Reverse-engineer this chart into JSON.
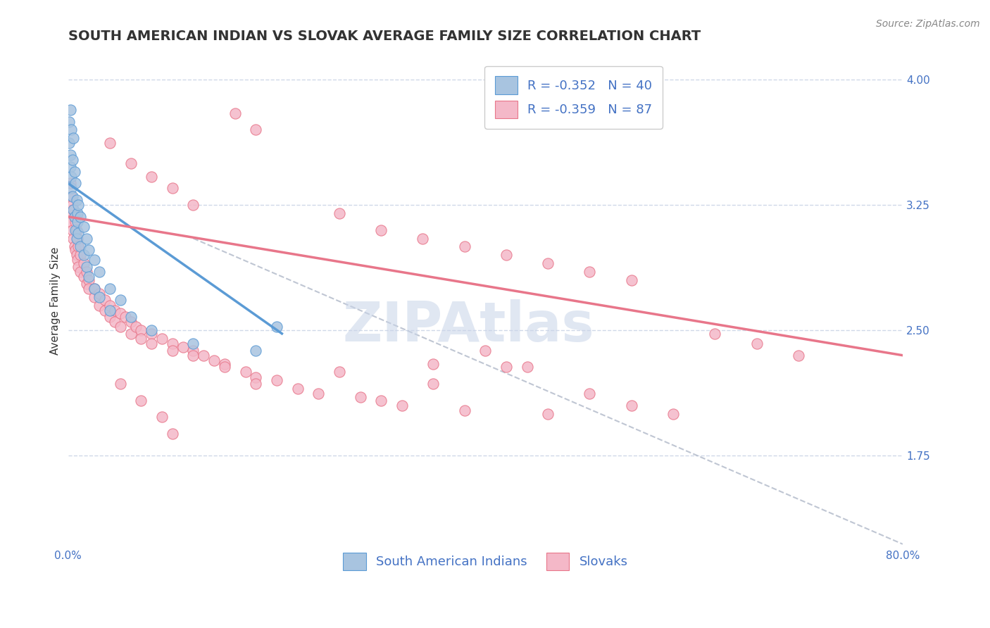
{
  "title": "SOUTH AMERICAN INDIAN VS SLOVAK AVERAGE FAMILY SIZE CORRELATION CHART",
  "source_text": "Source: ZipAtlas.com",
  "ylabel": "Average Family Size",
  "xlim": [
    0.0,
    0.8
  ],
  "ylim": [
    1.2,
    4.15
  ],
  "ytick_values": [
    1.75,
    2.5,
    3.25,
    4.0
  ],
  "blue_scatter": [
    [
      0.001,
      3.75
    ],
    [
      0.001,
      3.62
    ],
    [
      0.002,
      3.82
    ],
    [
      0.002,
      3.55
    ],
    [
      0.002,
      3.48
    ],
    [
      0.003,
      3.7
    ],
    [
      0.003,
      3.42
    ],
    [
      0.003,
      3.35
    ],
    [
      0.004,
      3.52
    ],
    [
      0.004,
      3.3
    ],
    [
      0.005,
      3.65
    ],
    [
      0.005,
      3.22
    ],
    [
      0.006,
      3.45
    ],
    [
      0.006,
      3.18
    ],
    [
      0.007,
      3.38
    ],
    [
      0.007,
      3.1
    ],
    [
      0.008,
      3.28
    ],
    [
      0.008,
      3.05
    ],
    [
      0.009,
      3.2
    ],
    [
      0.009,
      3.15
    ],
    [
      0.01,
      3.25
    ],
    [
      0.01,
      3.08
    ],
    [
      0.012,
      3.18
    ],
    [
      0.012,
      3.0
    ],
    [
      0.015,
      3.12
    ],
    [
      0.015,
      2.95
    ],
    [
      0.018,
      3.05
    ],
    [
      0.018,
      2.88
    ],
    [
      0.02,
      2.98
    ],
    [
      0.02,
      2.82
    ],
    [
      0.025,
      2.92
    ],
    [
      0.025,
      2.75
    ],
    [
      0.03,
      2.85
    ],
    [
      0.03,
      2.7
    ],
    [
      0.04,
      2.75
    ],
    [
      0.04,
      2.62
    ],
    [
      0.05,
      2.68
    ],
    [
      0.06,
      2.58
    ],
    [
      0.08,
      2.5
    ],
    [
      0.12,
      2.42
    ],
    [
      0.18,
      2.38
    ],
    [
      0.2,
      2.52
    ]
  ],
  "pink_scatter": [
    [
      0.002,
      3.38
    ],
    [
      0.002,
      3.2
    ],
    [
      0.003,
      3.3
    ],
    [
      0.003,
      3.15
    ],
    [
      0.004,
      3.25
    ],
    [
      0.004,
      3.1
    ],
    [
      0.005,
      3.22
    ],
    [
      0.005,
      3.05
    ],
    [
      0.006,
      3.18
    ],
    [
      0.006,
      3.0
    ],
    [
      0.007,
      3.15
    ],
    [
      0.007,
      2.98
    ],
    [
      0.008,
      3.1
    ],
    [
      0.008,
      2.95
    ],
    [
      0.009,
      3.05
    ],
    [
      0.009,
      2.92
    ],
    [
      0.01,
      3.0
    ],
    [
      0.01,
      2.88
    ],
    [
      0.012,
      2.95
    ],
    [
      0.012,
      2.85
    ],
    [
      0.015,
      2.9
    ],
    [
      0.015,
      2.82
    ],
    [
      0.018,
      2.85
    ],
    [
      0.018,
      2.78
    ],
    [
      0.02,
      2.8
    ],
    [
      0.02,
      2.75
    ],
    [
      0.025,
      2.75
    ],
    [
      0.025,
      2.7
    ],
    [
      0.03,
      2.72
    ],
    [
      0.03,
      2.65
    ],
    [
      0.035,
      2.68
    ],
    [
      0.035,
      2.62
    ],
    [
      0.04,
      2.65
    ],
    [
      0.04,
      2.58
    ],
    [
      0.045,
      2.62
    ],
    [
      0.045,
      2.55
    ],
    [
      0.05,
      2.6
    ],
    [
      0.05,
      2.52
    ],
    [
      0.055,
      2.58
    ],
    [
      0.06,
      2.55
    ],
    [
      0.06,
      2.48
    ],
    [
      0.065,
      2.52
    ],
    [
      0.07,
      2.5
    ],
    [
      0.07,
      2.45
    ],
    [
      0.08,
      2.48
    ],
    [
      0.08,
      2.42
    ],
    [
      0.09,
      2.45
    ],
    [
      0.1,
      2.42
    ],
    [
      0.1,
      2.38
    ],
    [
      0.11,
      2.4
    ],
    [
      0.12,
      2.38
    ],
    [
      0.12,
      2.35
    ],
    [
      0.13,
      2.35
    ],
    [
      0.14,
      2.32
    ],
    [
      0.15,
      2.3
    ],
    [
      0.15,
      2.28
    ],
    [
      0.17,
      2.25
    ],
    [
      0.18,
      2.22
    ],
    [
      0.18,
      2.18
    ],
    [
      0.2,
      2.2
    ],
    [
      0.22,
      2.15
    ],
    [
      0.24,
      2.12
    ],
    [
      0.26,
      2.25
    ],
    [
      0.28,
      2.1
    ],
    [
      0.3,
      2.08
    ],
    [
      0.32,
      2.05
    ],
    [
      0.35,
      2.18
    ],
    [
      0.38,
      2.02
    ],
    [
      0.42,
      2.28
    ],
    [
      0.46,
      2.0
    ],
    [
      0.5,
      2.12
    ],
    [
      0.54,
      2.05
    ],
    [
      0.58,
      2.0
    ],
    [
      0.62,
      2.48
    ],
    [
      0.66,
      2.42
    ],
    [
      0.7,
      2.35
    ],
    [
      0.16,
      3.8
    ],
    [
      0.18,
      3.7
    ],
    [
      0.04,
      3.62
    ],
    [
      0.06,
      3.5
    ],
    [
      0.08,
      3.42
    ],
    [
      0.1,
      3.35
    ],
    [
      0.12,
      3.25
    ],
    [
      0.26,
      3.2
    ],
    [
      0.3,
      3.1
    ],
    [
      0.34,
      3.05
    ],
    [
      0.38,
      3.0
    ],
    [
      0.42,
      2.95
    ],
    [
      0.46,
      2.9
    ],
    [
      0.5,
      2.85
    ],
    [
      0.54,
      2.8
    ],
    [
      0.05,
      2.18
    ],
    [
      0.07,
      2.08
    ],
    [
      0.09,
      1.98
    ],
    [
      0.1,
      1.88
    ],
    [
      0.35,
      2.3
    ],
    [
      0.4,
      2.38
    ],
    [
      0.44,
      2.28
    ]
  ],
  "blue_line": {
    "x": [
      0.0,
      0.205
    ],
    "y": [
      3.38,
      2.48
    ]
  },
  "pink_line": {
    "x": [
      0.0,
      0.8
    ],
    "y": [
      3.18,
      2.35
    ]
  },
  "gray_dashed_line": {
    "x": [
      0.12,
      0.8
    ],
    "y": [
      3.05,
      1.22
    ]
  },
  "blue_color": "#5b9bd5",
  "pink_color": "#e8768a",
  "blue_scatter_color": "#a8c4e0",
  "pink_scatter_color": "#f4b8c8",
  "gray_color": "#b0b8c8",
  "watermark": "ZIPAtlas",
  "watermark_color": "#c8d4e8",
  "title_fontsize": 14,
  "axis_label_fontsize": 11,
  "tick_fontsize": 11,
  "legend_fontsize": 13,
  "grid_color": "#d0d8e8",
  "background_color": "#ffffff"
}
